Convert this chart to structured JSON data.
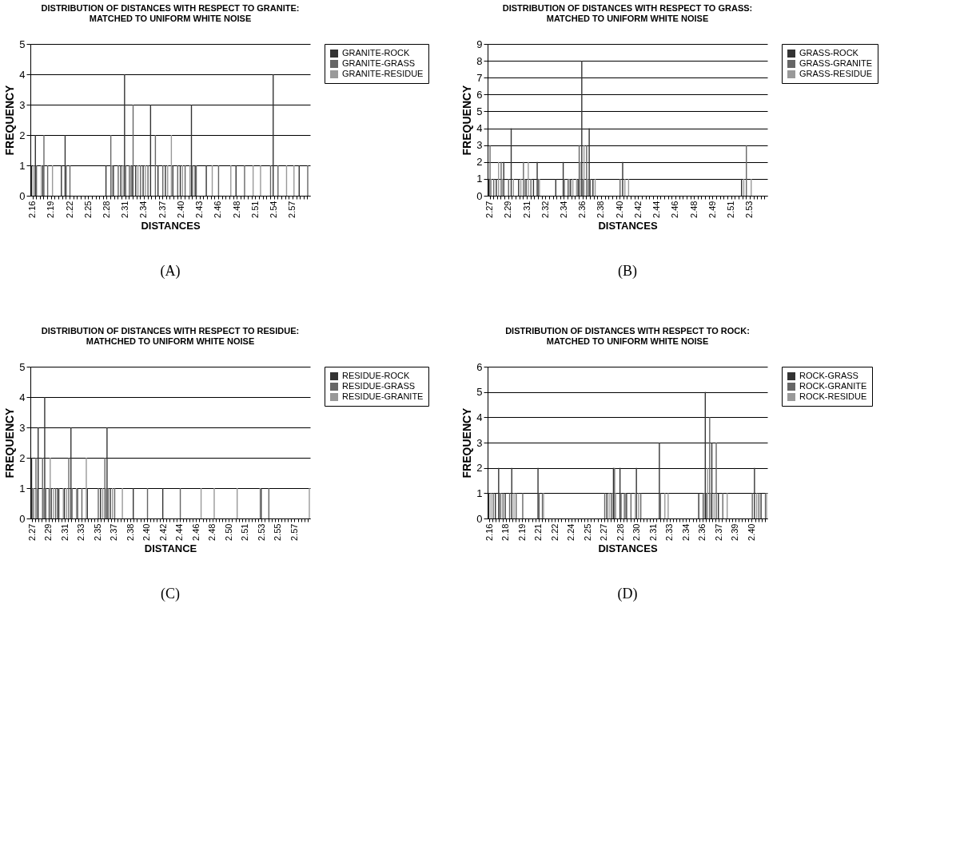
{
  "chart_data": [
    {
      "type": "bar",
      "title": "DISTRIBUTION OF DISTANCES WITH RESPECT TO GRANITE: MATCHED TO UNIFORM WHITE NOISE",
      "xlabel": "DISTANCES",
      "ylabel": "FREQUENCY",
      "annotations": [
        "(A)"
      ],
      "ylim": [
        0,
        5
      ],
      "yticks": [
        0,
        1,
        2,
        3,
        4,
        5
      ],
      "grid": "y",
      "legend": "right",
      "categories": [
        "2.16",
        null,
        null,
        null,
        null,
        "2.19",
        null,
        null,
        null,
        null,
        "2.22",
        null,
        null,
        null,
        null,
        "2.25",
        null,
        null,
        null,
        null,
        "2.28",
        null,
        null,
        null,
        null,
        "2.31",
        null,
        null,
        null,
        null,
        "2.34",
        null,
        null,
        null,
        null,
        "2.37",
        null,
        null,
        null,
        null,
        "2.40",
        null,
        null,
        null,
        null,
        "2.43",
        null,
        null,
        null,
        null,
        "2.46",
        null,
        null,
        null,
        null,
        "2.48",
        null,
        null,
        null,
        null,
        "2.51",
        null,
        null,
        null,
        null,
        "2.54",
        null,
        null,
        null,
        null,
        "2.57",
        null,
        null,
        null,
        null
      ],
      "series": [
        {
          "name": "GRANITE-ROCK",
          "color": "#333333",
          "values": [
            1,
            2,
            0,
            1,
            0,
            0,
            0,
            0,
            1,
            2,
            0,
            0,
            0,
            0,
            0,
            0,
            0,
            0,
            0,
            0,
            1,
            0,
            1,
            0,
            1,
            4,
            0,
            1,
            1,
            0,
            1,
            0,
            3,
            0,
            1,
            0,
            1,
            0,
            1,
            0,
            1,
            0,
            0,
            3,
            1,
            0,
            0,
            1,
            0,
            0,
            0,
            0,
            0,
            0,
            0,
            1,
            0,
            0,
            0,
            0,
            0,
            0,
            0,
            0,
            0,
            4,
            0,
            0,
            0,
            0,
            0,
            0,
            1,
            0,
            0
          ]
        },
        {
          "name": "GRANITE-GRASS",
          "color": "#666666",
          "values": [
            0,
            1,
            0,
            2,
            1,
            0,
            0,
            0,
            0,
            1,
            1,
            0,
            0,
            0,
            0,
            0,
            0,
            0,
            0,
            0,
            0,
            2,
            0,
            1,
            0,
            1,
            1,
            3,
            0,
            1,
            0,
            1,
            0,
            2,
            0,
            1,
            0,
            0,
            0,
            1,
            0,
            1,
            0,
            1,
            1,
            0,
            0,
            0,
            0,
            0,
            1,
            0,
            0,
            0,
            0,
            0,
            0,
            1,
            0,
            0,
            0,
            0,
            0,
            0,
            1,
            0,
            1,
            0,
            0,
            0,
            0,
            0,
            0,
            0,
            1
          ]
        },
        {
          "name": "GRANITE-RESIDUE",
          "color": "#999999",
          "values": [
            1,
            0,
            1,
            0,
            0,
            1,
            0,
            0,
            0,
            0,
            0,
            0,
            0,
            0,
            0,
            0,
            0,
            0,
            0,
            0,
            0,
            1,
            0,
            0,
            1,
            0,
            1,
            0,
            1,
            0,
            1,
            0,
            0,
            0,
            0,
            0,
            1,
            2,
            0,
            0,
            1,
            0,
            1,
            0,
            0,
            0,
            0,
            0,
            1,
            0,
            0,
            0,
            0,
            1,
            0,
            0,
            0,
            0,
            0,
            1,
            0,
            1,
            0,
            0,
            0,
            0,
            0,
            0,
            1,
            0,
            1,
            0,
            0,
            0,
            0
          ]
        }
      ]
    },
    {
      "type": "bar",
      "title": "DISTRIBUTION OF DISTANCES WITH RESPECT TO GRASS: MATCHED TO UNIFORM WHITE NOISE",
      "xlabel": "DISTANCES",
      "ylabel": "FREQUENCY",
      "annotations": [
        "(B)"
      ],
      "ylim": [
        0,
        9
      ],
      "yticks": [
        0,
        1,
        2,
        3,
        4,
        5,
        6,
        7,
        8,
        9
      ],
      "grid": "y",
      "legend": "right",
      "categories": [
        "2.27",
        null,
        null,
        null,
        null,
        "2.29",
        null,
        null,
        null,
        null,
        "2.31",
        null,
        null,
        null,
        null,
        "2.32",
        null,
        null,
        null,
        null,
        "2.34",
        null,
        null,
        null,
        null,
        "2.36",
        null,
        null,
        null,
        null,
        "2.38",
        null,
        null,
        null,
        null,
        "2.40",
        null,
        null,
        null,
        null,
        "2.42",
        null,
        null,
        null,
        null,
        "2.44",
        null,
        null,
        null,
        null,
        "2.46",
        null,
        null,
        null,
        null,
        "2.48",
        null,
        null,
        null,
        null,
        "2.49",
        null,
        null,
        null,
        null,
        "2.51",
        null,
        null,
        null,
        null,
        "2.53",
        null,
        null,
        null,
        null
      ],
      "series": [
        {
          "name": "GRASS-ROCK",
          "color": "#333333",
          "values": [
            1,
            0,
            1,
            0,
            2,
            0,
            4,
            0,
            1,
            0,
            1,
            0,
            1,
            2,
            0,
            0,
            0,
            0,
            1,
            0,
            2,
            0,
            1,
            0,
            1,
            8,
            0,
            4,
            1,
            0,
            0,
            0,
            0,
            0,
            0,
            0,
            2,
            0,
            0,
            0,
            0,
            0,
            0,
            0,
            0,
            0,
            0,
            0,
            0,
            0,
            0,
            0,
            0,
            0,
            0,
            0,
            0,
            0,
            0,
            0,
            0,
            0,
            0,
            0,
            0,
            0,
            0,
            0,
            1,
            0,
            0,
            0,
            0,
            0,
            0
          ]
        },
        {
          "name": "GRASS-GRANITE",
          "color": "#666666",
          "values": [
            3,
            1,
            0,
            2,
            0,
            1,
            0,
            0,
            0,
            2,
            0,
            1,
            0,
            1,
            0,
            0,
            0,
            0,
            0,
            0,
            1,
            1,
            0,
            0,
            3,
            1,
            3,
            1,
            0,
            0,
            0,
            0,
            0,
            0,
            0,
            1,
            0,
            0,
            0,
            0,
            0,
            0,
            0,
            0,
            0,
            0,
            0,
            0,
            0,
            0,
            0,
            0,
            0,
            0,
            0,
            0,
            0,
            0,
            0,
            0,
            0,
            0,
            0,
            0,
            0,
            0,
            0,
            0,
            0,
            3,
            0,
            0,
            0,
            0,
            0
          ]
        },
        {
          "name": "GRASS-RESIDUE",
          "color": "#999999",
          "values": [
            1,
            0,
            2,
            1,
            0,
            0,
            1,
            0,
            1,
            1,
            2,
            0,
            0,
            1,
            0,
            0,
            0,
            0,
            0,
            0,
            0,
            1,
            1,
            1,
            2,
            3,
            1,
            0,
            1,
            0,
            0,
            0,
            0,
            0,
            0,
            0,
            1,
            1,
            0,
            0,
            0,
            0,
            0,
            0,
            0,
            0,
            0,
            0,
            0,
            0,
            0,
            0,
            0,
            0,
            0,
            0,
            0,
            0,
            0,
            0,
            0,
            0,
            0,
            0,
            0,
            0,
            0,
            0,
            1,
            0,
            1,
            0,
            0,
            0,
            0
          ]
        }
      ]
    },
    {
      "type": "bar",
      "title": "DISTRIBUTION OF DISTANCES WITH RESPECT TO RESIDUE: MATHCHED TO UNIFORM WHITE NOISE",
      "xlabel": "DISTANCE",
      "ylabel": "FREQUENCY",
      "annotations": [
        "(C)"
      ],
      "ylim": [
        0,
        5
      ],
      "yticks": [
        0,
        1,
        2,
        3,
        4,
        5
      ],
      "grid": "y",
      "legend": "right",
      "categories": [
        "2.27",
        null,
        null,
        null,
        null,
        "2.29",
        null,
        null,
        null,
        null,
        "2.31",
        null,
        null,
        null,
        null,
        "2.33",
        null,
        null,
        null,
        null,
        "2.35",
        null,
        null,
        null,
        null,
        "2.37",
        null,
        null,
        null,
        null,
        "2.38",
        null,
        null,
        null,
        null,
        "2.40",
        null,
        null,
        null,
        null,
        "2.42",
        null,
        null,
        null,
        null,
        "2.44",
        null,
        null,
        null,
        null,
        "2.46",
        null,
        null,
        null,
        null,
        "2.48",
        null,
        null,
        null,
        null,
        "2.50",
        null,
        null,
        null,
        null,
        "2.51",
        null,
        null,
        null,
        null,
        "2.53",
        null,
        null,
        null,
        null,
        "2.55",
        null,
        null,
        null,
        null,
        "2.57",
        null,
        null,
        null,
        null
      ],
      "series": [
        {
          "name": "RESIDUE-ROCK",
          "color": "#333333",
          "values": [
            2,
            0,
            3,
            0,
            4,
            0,
            1,
            0,
            1,
            0,
            1,
            0,
            3,
            0,
            1,
            0,
            0,
            1,
            0,
            0,
            0,
            1,
            0,
            3,
            1,
            0,
            0,
            0,
            0,
            0,
            0,
            1,
            0,
            0,
            0,
            0,
            0,
            0,
            0,
            0,
            1,
            0,
            0,
            0,
            0,
            0,
            0,
            0,
            0,
            0,
            0,
            0,
            0,
            0,
            0,
            0,
            0,
            0,
            0,
            0,
            0,
            0,
            0,
            0,
            0,
            0,
            0,
            0,
            0,
            0,
            1,
            0,
            0,
            0,
            0,
            0,
            0,
            0,
            0,
            0,
            0,
            0,
            0,
            0,
            0
          ]
        },
        {
          "name": "RESIDUE-GRASS",
          "color": "#666666",
          "values": [
            1,
            2,
            0,
            2,
            1,
            1,
            0,
            1,
            1,
            0,
            0,
            2,
            1,
            0,
            0,
            1,
            0,
            0,
            0,
            0,
            1,
            0,
            2,
            1,
            0,
            1,
            0,
            0,
            0,
            0,
            0,
            0,
            0,
            0,
            0,
            1,
            0,
            0,
            0,
            0,
            0,
            0,
            0,
            0,
            0,
            1,
            0,
            0,
            0,
            0,
            0,
            0,
            0,
            0,
            0,
            0,
            0,
            0,
            0,
            0,
            0,
            0,
            0,
            0,
            0,
            0,
            0,
            0,
            0,
            0,
            0,
            0,
            1,
            0,
            0,
            0,
            0,
            0,
            0,
            0,
            0,
            0,
            0,
            0,
            0
          ]
        },
        {
          "name": "RESIDUE-GRANITE",
          "color": "#999999",
          "values": [
            1,
            1,
            0,
            1,
            0,
            2,
            1,
            0,
            0,
            1,
            1,
            0,
            0,
            1,
            0,
            0,
            2,
            0,
            0,
            0,
            0,
            1,
            1,
            0,
            1,
            0,
            0,
            1,
            0,
            0,
            0,
            0,
            0,
            0,
            0,
            0,
            0,
            0,
            0,
            0,
            0,
            0,
            0,
            0,
            0,
            0,
            0,
            0,
            0,
            0,
            0,
            1,
            0,
            0,
            0,
            1,
            0,
            0,
            0,
            0,
            0,
            0,
            1,
            0,
            0,
            0,
            0,
            0,
            0,
            1,
            0,
            0,
            0,
            0,
            0,
            0,
            0,
            0,
            0,
            0,
            0,
            0,
            0,
            0,
            1
          ]
        }
      ]
    },
    {
      "type": "bar",
      "title": "DISTRIBUTION OF DISTANCES WITH RESPECT TO ROCK: MATCHED TO UNIFORM WHITE NOISE",
      "xlabel": "DISTANCES",
      "ylabel": "FREQUENCY",
      "annotations": [
        "(D)"
      ],
      "ylim": [
        0,
        6
      ],
      "yticks": [
        0,
        1,
        2,
        3,
        4,
        5,
        6
      ],
      "grid": "y",
      "legend": "right",
      "categories": [
        "2.16",
        null,
        null,
        null,
        null,
        "2.18",
        null,
        null,
        null,
        null,
        "2.19",
        null,
        null,
        null,
        null,
        "2.21",
        null,
        null,
        null,
        null,
        "2.22",
        null,
        null,
        null,
        null,
        "2.24",
        null,
        null,
        null,
        null,
        "2.25",
        null,
        null,
        null,
        null,
        "2.27",
        null,
        null,
        null,
        null,
        "2.28",
        null,
        null,
        null,
        null,
        "2.30",
        null,
        null,
        null,
        null,
        "2.31",
        null,
        null,
        null,
        null,
        "2.33",
        null,
        null,
        null,
        null,
        "2.34",
        null,
        null,
        null,
        null,
        "2.36",
        null,
        null,
        null,
        null,
        "2.37",
        null,
        null,
        null,
        null,
        "2.39",
        null,
        null,
        null,
        null,
        "2.40",
        null,
        null,
        null,
        null
      ],
      "series": [
        {
          "name": "ROCK-GRASS",
          "color": "#333333",
          "values": [
            1,
            0,
            1,
            2,
            0,
            1,
            0,
            2,
            0,
            0,
            0,
            0,
            0,
            0,
            0,
            2,
            0,
            0,
            0,
            0,
            0,
            0,
            0,
            0,
            0,
            0,
            0,
            0,
            0,
            0,
            0,
            0,
            0,
            0,
            0,
            0,
            1,
            0,
            2,
            0,
            2,
            0,
            1,
            0,
            0,
            2,
            0,
            0,
            0,
            0,
            0,
            0,
            3,
            0,
            0,
            0,
            0,
            0,
            0,
            0,
            0,
            0,
            0,
            0,
            1,
            0,
            5,
            0,
            3,
            0,
            1,
            0,
            0,
            0,
            0,
            0,
            0,
            0,
            0,
            0,
            0,
            2,
            0,
            1,
            0
          ]
        },
        {
          "name": "ROCK-GRANITE",
          "color": "#666666",
          "values": [
            0,
            1,
            0,
            1,
            1,
            0,
            1,
            0,
            1,
            0,
            1,
            0,
            0,
            0,
            0,
            1,
            1,
            0,
            0,
            0,
            0,
            0,
            0,
            0,
            0,
            0,
            0,
            0,
            0,
            0,
            0,
            0,
            0,
            0,
            0,
            1,
            0,
            1,
            2,
            0,
            1,
            1,
            0,
            1,
            0,
            0,
            1,
            0,
            0,
            0,
            0,
            0,
            1,
            0,
            0,
            0,
            0,
            0,
            0,
            0,
            0,
            0,
            0,
            0,
            0,
            1,
            1,
            4,
            0,
            3,
            0,
            1,
            0,
            0,
            0,
            0,
            0,
            0,
            0,
            0,
            1,
            0,
            1,
            0,
            1
          ]
        },
        {
          "name": "ROCK-RESIDUE",
          "color": "#999999",
          "values": [
            1,
            0,
            0,
            1,
            0,
            0,
            0,
            1,
            0,
            0,
            0,
            0,
            0,
            0,
            0,
            0,
            1,
            0,
            0,
            0,
            0,
            0,
            0,
            0,
            0,
            0,
            0,
            0,
            0,
            0,
            0,
            0,
            0,
            0,
            0,
            0,
            1,
            1,
            1,
            0,
            0,
            1,
            0,
            0,
            1,
            1,
            0,
            0,
            0,
            0,
            0,
            0,
            0,
            1,
            1,
            0,
            0,
            0,
            0,
            0,
            0,
            0,
            0,
            0,
            0,
            1,
            2,
            1,
            1,
            0,
            0,
            0,
            1,
            0,
            0,
            0,
            0,
            0,
            0,
            0,
            0,
            1,
            0,
            0,
            1
          ]
        }
      ]
    }
  ]
}
